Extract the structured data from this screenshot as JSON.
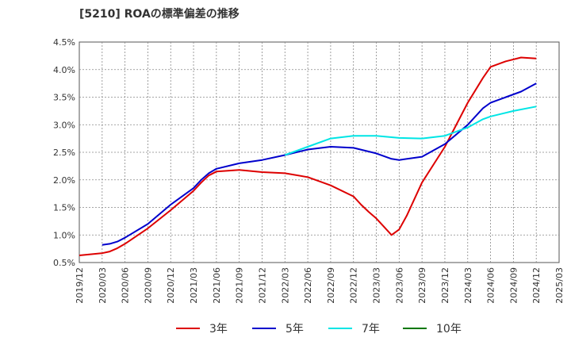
{
  "chart_data": {
    "type": "line",
    "title": "[5210]  ROAの標準偏差の推移",
    "xlabel": "",
    "ylabel": "",
    "ylim": [
      0.5,
      4.5
    ],
    "yticks": [
      "0.5%",
      "1.0%",
      "1.5%",
      "2.0%",
      "2.5%",
      "3.0%",
      "3.5%",
      "4.0%",
      "4.5%"
    ],
    "xticks": [
      "2019/12",
      "2020/03",
      "2020/06",
      "2020/09",
      "2020/12",
      "2021/03",
      "2021/06",
      "2021/09",
      "2021/12",
      "2022/03",
      "2022/06",
      "2022/09",
      "2022/12",
      "2023/03",
      "2023/06",
      "2023/09",
      "2023/12",
      "2024/03",
      "2024/06",
      "2024/09",
      "2024/12",
      "2025/03"
    ],
    "grid": true,
    "legend_position": "bottom",
    "series": [
      {
        "name": "3年",
        "color": "#dd0000",
        "points": [
          [
            "2019/12",
            0.63
          ],
          [
            "2020/03",
            0.67
          ],
          [
            "2020/04",
            0.7
          ],
          [
            "2020/05",
            0.76
          ],
          [
            "2020/06",
            0.84
          ],
          [
            "2020/09",
            1.12
          ],
          [
            "2020/12",
            1.45
          ],
          [
            "2021/03",
            1.8
          ],
          [
            "2021/04",
            1.95
          ],
          [
            "2021/05",
            2.08
          ],
          [
            "2021/06",
            2.15
          ],
          [
            "2021/09",
            2.18
          ],
          [
            "2021/12",
            2.14
          ],
          [
            "2022/03",
            2.12
          ],
          [
            "2022/06",
            2.05
          ],
          [
            "2022/09",
            1.9
          ],
          [
            "2022/12",
            1.7
          ],
          [
            "2023/01",
            1.55
          ],
          [
            "2023/02",
            1.42
          ],
          [
            "2023/03",
            1.3
          ],
          [
            "2023/04",
            1.15
          ],
          [
            "2023/05",
            1.0
          ],
          [
            "2023/06",
            1.1
          ],
          [
            "2023/07",
            1.35
          ],
          [
            "2023/09",
            1.95
          ],
          [
            "2023/12",
            2.6
          ],
          [
            "2024/03",
            3.4
          ],
          [
            "2024/05",
            3.85
          ],
          [
            "2024/06",
            4.05
          ],
          [
            "2024/08",
            4.15
          ],
          [
            "2024/10",
            4.22
          ],
          [
            "2024/12",
            4.2
          ]
        ]
      },
      {
        "name": "5年",
        "color": "#0000cc",
        "points": [
          [
            "2020/03",
            0.82
          ],
          [
            "2020/04",
            0.84
          ],
          [
            "2020/05",
            0.88
          ],
          [
            "2020/06",
            0.95
          ],
          [
            "2020/09",
            1.2
          ],
          [
            "2020/12",
            1.55
          ],
          [
            "2021/03",
            1.85
          ],
          [
            "2021/04",
            2.0
          ],
          [
            "2021/05",
            2.12
          ],
          [
            "2021/06",
            2.2
          ],
          [
            "2021/09",
            2.3
          ],
          [
            "2021/12",
            2.36
          ],
          [
            "2022/03",
            2.45
          ],
          [
            "2022/06",
            2.55
          ],
          [
            "2022/09",
            2.6
          ],
          [
            "2022/12",
            2.58
          ],
          [
            "2023/03",
            2.48
          ],
          [
            "2023/05",
            2.38
          ],
          [
            "2023/06",
            2.36
          ],
          [
            "2023/09",
            2.42
          ],
          [
            "2023/12",
            2.65
          ],
          [
            "2024/03",
            3.0
          ],
          [
            "2024/05",
            3.3
          ],
          [
            "2024/06",
            3.4
          ],
          [
            "2024/08",
            3.5
          ],
          [
            "2024/10",
            3.6
          ],
          [
            "2024/12",
            3.75
          ]
        ]
      },
      {
        "name": "7年",
        "color": "#00e5e5",
        "points": [
          [
            "2022/03",
            2.45
          ],
          [
            "2022/06",
            2.6
          ],
          [
            "2022/09",
            2.75
          ],
          [
            "2022/12",
            2.8
          ],
          [
            "2023/03",
            2.8
          ],
          [
            "2023/06",
            2.76
          ],
          [
            "2023/09",
            2.75
          ],
          [
            "2023/12",
            2.8
          ],
          [
            "2024/03",
            2.95
          ],
          [
            "2024/05",
            3.1
          ],
          [
            "2024/06",
            3.15
          ],
          [
            "2024/09",
            3.25
          ],
          [
            "2024/12",
            3.33
          ]
        ]
      },
      {
        "name": "10年",
        "color": "#007700",
        "points": []
      }
    ]
  }
}
